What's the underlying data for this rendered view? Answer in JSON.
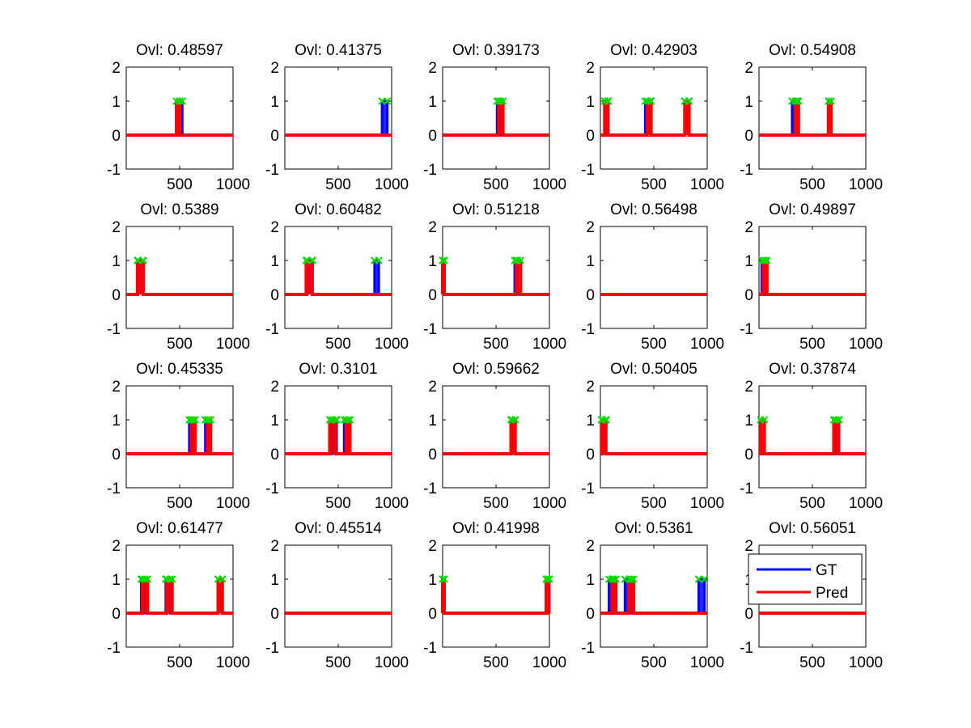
{
  "chart_data": [
    {
      "type": "line",
      "title": "Ovl: 0.48597",
      "xlim": [
        0,
        1000
      ],
      "ylim": [
        -1,
        2
      ],
      "xticks": [
        500,
        1000
      ],
      "yticks": [
        -1,
        0,
        1,
        2
      ],
      "series": [
        {
          "name": "GT",
          "color": "#0000ff",
          "segments": [
            [
              500,
              525
            ]
          ]
        },
        {
          "name": "Pred",
          "color": "#ff0000",
          "segments": [
            [
              470,
              500
            ]
          ]
        }
      ]
    },
    {
      "type": "line",
      "title": "Ovl: 0.41375",
      "xlim": [
        0,
        1000
      ],
      "ylim": [
        -1,
        2
      ],
      "xticks": [
        500,
        1000
      ],
      "yticks": [
        -1,
        0,
        1,
        2
      ],
      "series": [
        {
          "name": "GT",
          "color": "#0000ff",
          "segments": [
            [
              910,
              960
            ]
          ]
        },
        {
          "name": "Pred",
          "color": "#ff0000",
          "segments": []
        }
      ]
    },
    {
      "type": "line",
      "title": "Ovl: 0.39173",
      "xlim": [
        0,
        1000
      ],
      "ylim": [
        -1,
        2
      ],
      "xticks": [
        500,
        1000
      ],
      "yticks": [
        -1,
        0,
        1,
        2
      ],
      "series": [
        {
          "name": "GT",
          "color": "#0000ff",
          "segments": [
            [
              510,
              540
            ]
          ]
        },
        {
          "name": "Pred",
          "color": "#ff0000",
          "segments": [
            [
              525,
              565
            ]
          ]
        }
      ]
    },
    {
      "type": "line",
      "title": "Ovl: 0.42903",
      "xlim": [
        0,
        1000
      ],
      "ylim": [
        -1,
        2
      ],
      "xticks": [
        500,
        1000
      ],
      "yticks": [
        -1,
        0,
        1,
        2
      ],
      "series": [
        {
          "name": "GT",
          "color": "#0000ff",
          "segments": [
            [
              40,
              75
            ],
            [
              420,
              470
            ],
            [
              790,
              830
            ]
          ]
        },
        {
          "name": "Pred",
          "color": "#ff0000",
          "segments": [
            [
              40,
              70
            ],
            [
              440,
              475
            ],
            [
              790,
              830
            ]
          ]
        }
      ]
    },
    {
      "type": "line",
      "title": "Ovl: 0.54908",
      "xlim": [
        0,
        1000
      ],
      "ylim": [
        -1,
        2
      ],
      "xticks": [
        500,
        1000
      ],
      "yticks": [
        -1,
        0,
        1,
        2
      ],
      "series": [
        {
          "name": "GT",
          "color": "#0000ff",
          "segments": [
            [
              310,
              355
            ]
          ]
        },
        {
          "name": "Pred",
          "color": "#ff0000",
          "segments": [
            [
              340,
              370
            ],
            [
              650,
              675
            ]
          ]
        }
      ]
    },
    {
      "type": "line",
      "title": "Ovl: 0.5389",
      "xlim": [
        0,
        1000
      ],
      "ylim": [
        -1,
        2
      ],
      "xticks": [
        500,
        1000
      ],
      "yticks": [
        -1,
        0,
        1,
        2
      ],
      "series": [
        {
          "name": "GT",
          "color": "#0000ff",
          "segments": [
            [
              110,
              155
            ]
          ]
        },
        {
          "name": "Pred",
          "color": "#ff0000",
          "segments": [
            [
              105,
              160
            ]
          ]
        }
      ]
    },
    {
      "type": "line",
      "title": "Ovl: 0.60482",
      "xlim": [
        0,
        1000
      ],
      "ylim": [
        -1,
        2
      ],
      "xticks": [
        500,
        1000
      ],
      "yticks": [
        -1,
        0,
        1,
        2
      ],
      "series": [
        {
          "name": "GT",
          "color": "#0000ff",
          "segments": [
            [
              210,
              260
            ],
            [
              840,
              880
            ]
          ]
        },
        {
          "name": "Pred",
          "color": "#ff0000",
          "segments": [
            [
              200,
              255
            ]
          ]
        }
      ]
    },
    {
      "type": "line",
      "title": "Ovl: 0.51218",
      "xlim": [
        0,
        1000
      ],
      "ylim": [
        -1,
        2
      ],
      "xticks": [
        500,
        1000
      ],
      "yticks": [
        -1,
        0,
        1,
        2
      ],
      "series": [
        {
          "name": "GT",
          "color": "#0000ff",
          "segments": [
            [
              675,
              700
            ]
          ]
        },
        {
          "name": "Pred",
          "color": "#ff0000",
          "segments": [
            [
              0,
              15
            ],
            [
              690,
              730
            ]
          ]
        }
      ]
    },
    {
      "type": "line",
      "title": "Ovl: 0.56498",
      "xlim": [
        0,
        1000
      ],
      "ylim": [
        -1,
        2
      ],
      "xticks": [
        500,
        1000
      ],
      "yticks": [
        -1,
        0,
        1,
        2
      ],
      "series": [
        {
          "name": "GT",
          "color": "#0000ff",
          "segments": []
        },
        {
          "name": "Pred",
          "color": "#ff0000",
          "segments": []
        }
      ]
    },
    {
      "type": "line",
      "title": "Ovl: 0.49897",
      "xlim": [
        0,
        1000
      ],
      "ylim": [
        -1,
        2
      ],
      "xticks": [
        500,
        1000
      ],
      "yticks": [
        -1,
        0,
        1,
        2
      ],
      "series": [
        {
          "name": "GT",
          "color": "#0000ff",
          "segments": [
            [
              25,
              55
            ]
          ]
        },
        {
          "name": "Pred",
          "color": "#ff0000",
          "segments": [
            [
              40,
              75
            ]
          ]
        }
      ]
    },
    {
      "type": "line",
      "title": "Ovl: 0.45335",
      "xlim": [
        0,
        1000
      ],
      "ylim": [
        -1,
        2
      ],
      "xticks": [
        500,
        1000
      ],
      "yticks": [
        -1,
        0,
        1,
        2
      ],
      "series": [
        {
          "name": "GT",
          "color": "#0000ff",
          "segments": [
            [
              590,
              625
            ],
            [
              740,
              770
            ]
          ]
        },
        {
          "name": "Pred",
          "color": "#ff0000",
          "segments": [
            [
              610,
              645
            ],
            [
              760,
              790
            ]
          ]
        }
      ]
    },
    {
      "type": "line",
      "title": "Ovl: 0.3101",
      "xlim": [
        0,
        1000
      ],
      "ylim": [
        -1,
        2
      ],
      "xticks": [
        500,
        1000
      ],
      "yticks": [
        -1,
        0,
        1,
        2
      ],
      "series": [
        {
          "name": "GT",
          "color": "#0000ff",
          "segments": [
            [
              445,
              485
            ],
            [
              555,
              600
            ]
          ]
        },
        {
          "name": "Pred",
          "color": "#ff0000",
          "segments": [
            [
              420,
              475
            ],
            [
              575,
              610
            ]
          ]
        }
      ]
    },
    {
      "type": "line",
      "title": "Ovl: 0.59662",
      "xlim": [
        0,
        1000
      ],
      "ylim": [
        -1,
        2
      ],
      "xticks": [
        500,
        1000
      ],
      "yticks": [
        -1,
        0,
        1,
        2
      ],
      "series": [
        {
          "name": "GT",
          "color": "#0000ff",
          "segments": [
            [
              650,
              680
            ]
          ]
        },
        {
          "name": "Pred",
          "color": "#ff0000",
          "segments": [
            [
              640,
              680
            ]
          ]
        }
      ]
    },
    {
      "type": "line",
      "title": "Ovl: 0.50405",
      "xlim": [
        0,
        1000
      ],
      "ylim": [
        -1,
        2
      ],
      "xticks": [
        500,
        1000
      ],
      "yticks": [
        -1,
        0,
        1,
        2
      ],
      "series": [
        {
          "name": "GT",
          "color": "#0000ff",
          "segments": [
            [
              20,
              55
            ]
          ]
        },
        {
          "name": "Pred",
          "color": "#ff0000",
          "segments": [
            [
              10,
              50
            ]
          ]
        }
      ]
    },
    {
      "type": "line",
      "title": "Ovl: 0.37874",
      "xlim": [
        0,
        1000
      ],
      "ylim": [
        -1,
        2
      ],
      "xticks": [
        500,
        1000
      ],
      "yticks": [
        -1,
        0,
        1,
        2
      ],
      "series": [
        {
          "name": "GT",
          "color": "#0000ff",
          "segments": [
            [
              720,
              750
            ]
          ]
        },
        {
          "name": "Pred",
          "color": "#ff0000",
          "segments": [
            [
              15,
              50
            ],
            [
              700,
              745
            ]
          ]
        }
      ]
    },
    {
      "type": "line",
      "title": "Ovl: 0.61477",
      "xlim": [
        0,
        1000
      ],
      "ylim": [
        -1,
        2
      ],
      "xticks": [
        500,
        1000
      ],
      "yticks": [
        -1,
        0,
        1,
        2
      ],
      "series": [
        {
          "name": "GT",
          "color": "#0000ff",
          "segments": [
            [
              140,
              175
            ],
            [
              370,
              410
            ],
            [
              860,
              900
            ]
          ]
        },
        {
          "name": "Pred",
          "color": "#ff0000",
          "segments": [
            [
              150,
              200
            ],
            [
              380,
              430
            ],
            [
              860,
              900
            ]
          ]
        }
      ]
    },
    {
      "type": "line",
      "title": "Ovl: 0.45514",
      "xlim": [
        0,
        1000
      ],
      "ylim": [
        -1,
        2
      ],
      "xticks": [
        500,
        1000
      ],
      "yticks": [
        -1,
        0,
        1,
        2
      ],
      "series": [
        {
          "name": "GT",
          "color": "#0000ff",
          "segments": []
        },
        {
          "name": "Pred",
          "color": "#ff0000",
          "segments": []
        }
      ]
    },
    {
      "type": "line",
      "title": "Ovl: 0.41998",
      "xlim": [
        0,
        1000
      ],
      "ylim": [
        -1,
        2
      ],
      "xticks": [
        500,
        1000
      ],
      "yticks": [
        -1,
        0,
        1,
        2
      ],
      "series": [
        {
          "name": "GT",
          "color": "#0000ff",
          "segments": [
            [
              975,
              1000
            ]
          ]
        },
        {
          "name": "Pred",
          "color": "#ff0000",
          "segments": [
            [
              0,
              15
            ],
            [
              970,
              995
            ]
          ]
        }
      ]
    },
    {
      "type": "line",
      "title": "Ovl: 0.5361",
      "xlim": [
        0,
        1000
      ],
      "ylim": [
        -1,
        2
      ],
      "xticks": [
        500,
        1000
      ],
      "yticks": [
        -1,
        0,
        1,
        2
      ],
      "series": [
        {
          "name": "GT",
          "color": "#0000ff",
          "segments": [
            [
              80,
              120
            ],
            [
              230,
              290
            ],
            [
              920,
              975
            ]
          ]
        },
        {
          "name": "Pred",
          "color": "#ff0000",
          "segments": [
            [
              110,
              145
            ],
            [
              270,
              310
            ]
          ]
        }
      ]
    },
    {
      "type": "line",
      "title": "Ovl: 0.56051",
      "xlim": [
        0,
        1000
      ],
      "ylim": [
        -1,
        2
      ],
      "xticks": [
        500,
        1000
      ],
      "yticks": [
        -1,
        0,
        1,
        2
      ],
      "series": [
        {
          "name": "GT",
          "color": "#0000ff",
          "segments": []
        },
        {
          "name": "Pred",
          "color": "#ff0000",
          "segments": []
        }
      ]
    }
  ],
  "legend": {
    "entries": [
      {
        "label": "GT",
        "color": "#0000ff"
      },
      {
        "label": "Pred",
        "color": "#ff0000"
      }
    ],
    "location": "inside subplot 20, upper-left"
  },
  "marker_color": "#00dd00"
}
